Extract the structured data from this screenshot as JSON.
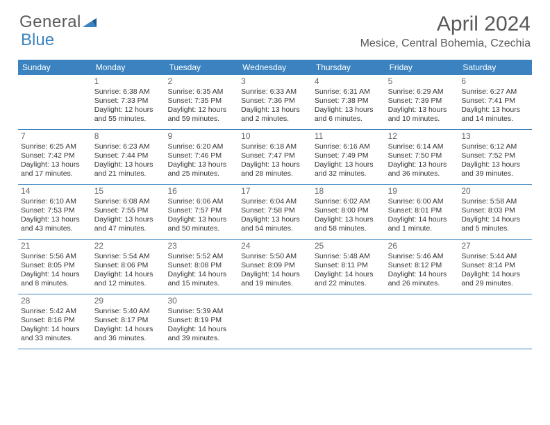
{
  "header": {
    "logo_text1": "General",
    "logo_text2": "Blue",
    "month_title": "April 2024",
    "location": "Mesice, Central Bohemia, Czechia"
  },
  "colors": {
    "header_bg": "#3b83c0",
    "header_text": "#ffffff",
    "logo_gray": "#58595b",
    "logo_blue": "#3b83c0",
    "text": "#333333",
    "border": "#3b83c0",
    "background": "#ffffff"
  },
  "typography": {
    "month_title_fontsize": 30,
    "location_fontsize": 16,
    "header_fontsize": 12,
    "cell_fontsize": 10.5,
    "daynum_fontsize": 12,
    "logo_fontsize": 24
  },
  "calendar": {
    "type": "table",
    "day_headers": [
      "Sunday",
      "Monday",
      "Tuesday",
      "Wednesday",
      "Thursday",
      "Friday",
      "Saturday"
    ],
    "weeks": [
      [
        {
          "day": "",
          "lines": []
        },
        {
          "day": "1",
          "lines": [
            "Sunrise: 6:38 AM",
            "Sunset: 7:33 PM",
            "Daylight: 12 hours",
            "and 55 minutes."
          ]
        },
        {
          "day": "2",
          "lines": [
            "Sunrise: 6:35 AM",
            "Sunset: 7:35 PM",
            "Daylight: 12 hours",
            "and 59 minutes."
          ]
        },
        {
          "day": "3",
          "lines": [
            "Sunrise: 6:33 AM",
            "Sunset: 7:36 PM",
            "Daylight: 13 hours",
            "and 2 minutes."
          ]
        },
        {
          "day": "4",
          "lines": [
            "Sunrise: 6:31 AM",
            "Sunset: 7:38 PM",
            "Daylight: 13 hours",
            "and 6 minutes."
          ]
        },
        {
          "day": "5",
          "lines": [
            "Sunrise: 6:29 AM",
            "Sunset: 7:39 PM",
            "Daylight: 13 hours",
            "and 10 minutes."
          ]
        },
        {
          "day": "6",
          "lines": [
            "Sunrise: 6:27 AM",
            "Sunset: 7:41 PM",
            "Daylight: 13 hours",
            "and 14 minutes."
          ]
        }
      ],
      [
        {
          "day": "7",
          "lines": [
            "Sunrise: 6:25 AM",
            "Sunset: 7:42 PM",
            "Daylight: 13 hours",
            "and 17 minutes."
          ]
        },
        {
          "day": "8",
          "lines": [
            "Sunrise: 6:23 AM",
            "Sunset: 7:44 PM",
            "Daylight: 13 hours",
            "and 21 minutes."
          ]
        },
        {
          "day": "9",
          "lines": [
            "Sunrise: 6:20 AM",
            "Sunset: 7:46 PM",
            "Daylight: 13 hours",
            "and 25 minutes."
          ]
        },
        {
          "day": "10",
          "lines": [
            "Sunrise: 6:18 AM",
            "Sunset: 7:47 PM",
            "Daylight: 13 hours",
            "and 28 minutes."
          ]
        },
        {
          "day": "11",
          "lines": [
            "Sunrise: 6:16 AM",
            "Sunset: 7:49 PM",
            "Daylight: 13 hours",
            "and 32 minutes."
          ]
        },
        {
          "day": "12",
          "lines": [
            "Sunrise: 6:14 AM",
            "Sunset: 7:50 PM",
            "Daylight: 13 hours",
            "and 36 minutes."
          ]
        },
        {
          "day": "13",
          "lines": [
            "Sunrise: 6:12 AM",
            "Sunset: 7:52 PM",
            "Daylight: 13 hours",
            "and 39 minutes."
          ]
        }
      ],
      [
        {
          "day": "14",
          "lines": [
            "Sunrise: 6:10 AM",
            "Sunset: 7:53 PM",
            "Daylight: 13 hours",
            "and 43 minutes."
          ]
        },
        {
          "day": "15",
          "lines": [
            "Sunrise: 6:08 AM",
            "Sunset: 7:55 PM",
            "Daylight: 13 hours",
            "and 47 minutes."
          ]
        },
        {
          "day": "16",
          "lines": [
            "Sunrise: 6:06 AM",
            "Sunset: 7:57 PM",
            "Daylight: 13 hours",
            "and 50 minutes."
          ]
        },
        {
          "day": "17",
          "lines": [
            "Sunrise: 6:04 AM",
            "Sunset: 7:58 PM",
            "Daylight: 13 hours",
            "and 54 minutes."
          ]
        },
        {
          "day": "18",
          "lines": [
            "Sunrise: 6:02 AM",
            "Sunset: 8:00 PM",
            "Daylight: 13 hours",
            "and 58 minutes."
          ]
        },
        {
          "day": "19",
          "lines": [
            "Sunrise: 6:00 AM",
            "Sunset: 8:01 PM",
            "Daylight: 14 hours",
            "and 1 minute."
          ]
        },
        {
          "day": "20",
          "lines": [
            "Sunrise: 5:58 AM",
            "Sunset: 8:03 PM",
            "Daylight: 14 hours",
            "and 5 minutes."
          ]
        }
      ],
      [
        {
          "day": "21",
          "lines": [
            "Sunrise: 5:56 AM",
            "Sunset: 8:05 PM",
            "Daylight: 14 hours",
            "and 8 minutes."
          ]
        },
        {
          "day": "22",
          "lines": [
            "Sunrise: 5:54 AM",
            "Sunset: 8:06 PM",
            "Daylight: 14 hours",
            "and 12 minutes."
          ]
        },
        {
          "day": "23",
          "lines": [
            "Sunrise: 5:52 AM",
            "Sunset: 8:08 PM",
            "Daylight: 14 hours",
            "and 15 minutes."
          ]
        },
        {
          "day": "24",
          "lines": [
            "Sunrise: 5:50 AM",
            "Sunset: 8:09 PM",
            "Daylight: 14 hours",
            "and 19 minutes."
          ]
        },
        {
          "day": "25",
          "lines": [
            "Sunrise: 5:48 AM",
            "Sunset: 8:11 PM",
            "Daylight: 14 hours",
            "and 22 minutes."
          ]
        },
        {
          "day": "26",
          "lines": [
            "Sunrise: 5:46 AM",
            "Sunset: 8:12 PM",
            "Daylight: 14 hours",
            "and 26 minutes."
          ]
        },
        {
          "day": "27",
          "lines": [
            "Sunrise: 5:44 AM",
            "Sunset: 8:14 PM",
            "Daylight: 14 hours",
            "and 29 minutes."
          ]
        }
      ],
      [
        {
          "day": "28",
          "lines": [
            "Sunrise: 5:42 AM",
            "Sunset: 8:16 PM",
            "Daylight: 14 hours",
            "and 33 minutes."
          ]
        },
        {
          "day": "29",
          "lines": [
            "Sunrise: 5:40 AM",
            "Sunset: 8:17 PM",
            "Daylight: 14 hours",
            "and 36 minutes."
          ]
        },
        {
          "day": "30",
          "lines": [
            "Sunrise: 5:39 AM",
            "Sunset: 8:19 PM",
            "Daylight: 14 hours",
            "and 39 minutes."
          ]
        },
        {
          "day": "",
          "lines": []
        },
        {
          "day": "",
          "lines": []
        },
        {
          "day": "",
          "lines": []
        },
        {
          "day": "",
          "lines": []
        }
      ]
    ]
  }
}
